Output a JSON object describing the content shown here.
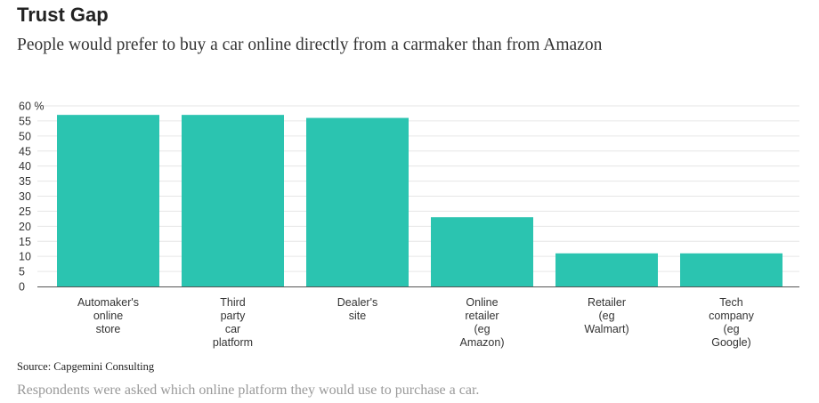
{
  "header": {
    "title": "Trust Gap",
    "subtitle": "People would prefer to buy a car online directly from a carmaker than from Amazon"
  },
  "footer": {
    "source": "Source: Capgemini Consulting",
    "note": "Respondents were asked which online platform they would use to purchase a car."
  },
  "colors": {
    "bar": "#2bc4b0",
    "grid": "#e6e6e6",
    "axis": "#555555"
  },
  "chart_data": {
    "type": "bar",
    "categories": [
      [
        "Automaker's",
        "online",
        "store"
      ],
      [
        "Third",
        "party",
        "car",
        "platform"
      ],
      [
        "Dealer's",
        "site"
      ],
      [
        "Online",
        "retailer",
        "(eg",
        "Amazon)"
      ],
      [
        "Retailer",
        "(eg",
        "Walmart)"
      ],
      [
        "Tech",
        "company",
        "(eg",
        "Google)"
      ]
    ],
    "values": [
      57,
      57,
      56,
      23,
      11,
      11
    ],
    "ylim": [
      0,
      60
    ],
    "yticks": [
      0,
      5,
      10,
      15,
      20,
      25,
      30,
      35,
      40,
      45,
      50,
      55,
      60
    ],
    "ytick_labels": [
      "0",
      "5",
      "10",
      "15",
      "20",
      "25",
      "30",
      "35",
      "40",
      "45",
      "50",
      "55",
      "60 %"
    ],
    "grid": true,
    "legend": "none"
  }
}
